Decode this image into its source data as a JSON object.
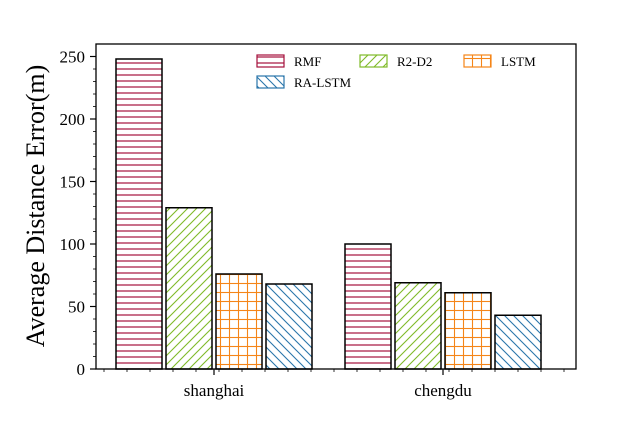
{
  "chart_data": {
    "type": "bar",
    "categories": [
      "shanghai",
      "chengdu"
    ],
    "ylabel": "Average Distance Error(m)",
    "xlabel": "",
    "ylim": [
      0,
      260
    ],
    "yticks": [
      0,
      50,
      100,
      150,
      200,
      250
    ],
    "legend_position": "top-right",
    "grid": false,
    "series": [
      {
        "name": "RMF",
        "values": [
          248,
          100
        ],
        "color": "#a50f3b",
        "pattern": "horizontal-lines"
      },
      {
        "name": "R2-D2",
        "values": [
          129,
          69
        ],
        "color": "#7fba28",
        "pattern": "diagonal-lines"
      },
      {
        "name": "LSTM",
        "values": [
          76,
          61
        ],
        "color": "#f58518",
        "pattern": "grid"
      },
      {
        "name": "RA-LSTM",
        "values": [
          68,
          43
        ],
        "color": "#2a76ab",
        "pattern": "back-diagonal-lines"
      }
    ]
  }
}
